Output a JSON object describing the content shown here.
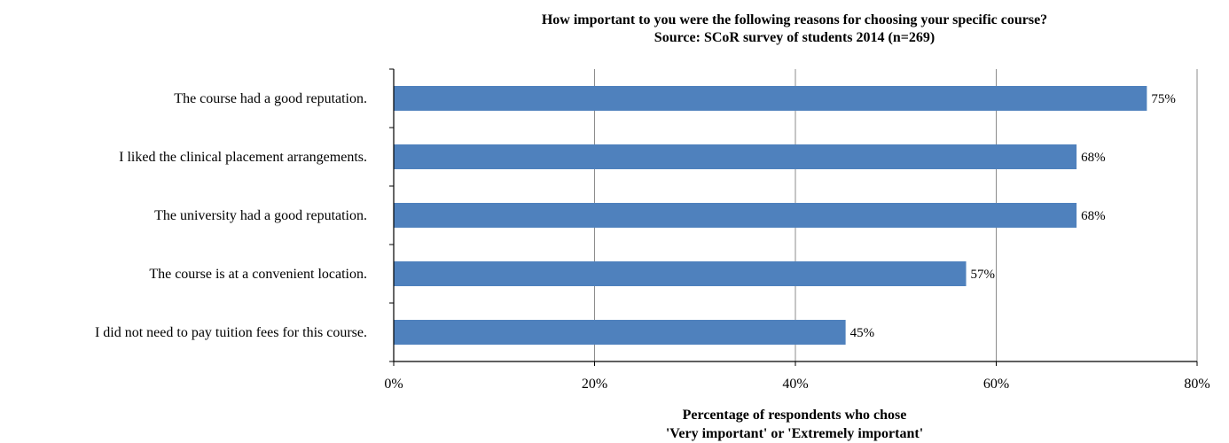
{
  "chart_data": {
    "type": "bar",
    "orientation": "horizontal",
    "title": "How important to you were the following reasons for choosing your specific course?",
    "subtitle": "Source: SCoR survey of students 2014 (n=269)",
    "categories": [
      "The course had a good reputation.",
      "I liked the clinical placement arrangements.",
      "The university had a good reputation.",
      "The course is at a convenient location.",
      "I did not need to pay tuition fees for this course."
    ],
    "values": [
      75,
      68,
      68,
      57,
      45
    ],
    "value_labels": [
      "75%",
      "68%",
      "68%",
      "57%",
      "45%"
    ],
    "xlim": [
      0,
      80
    ],
    "xticks": [
      0,
      20,
      40,
      60,
      80
    ],
    "xtick_labels": [
      "0%",
      "20%",
      "40%",
      "60%",
      "80%"
    ],
    "xlabel_line1": "Percentage of respondents who chose",
    "xlabel_line2": "'Very important' or 'Extremely important'",
    "bar_color": "#4f81bd",
    "grid": "vertical",
    "legend": "none"
  }
}
